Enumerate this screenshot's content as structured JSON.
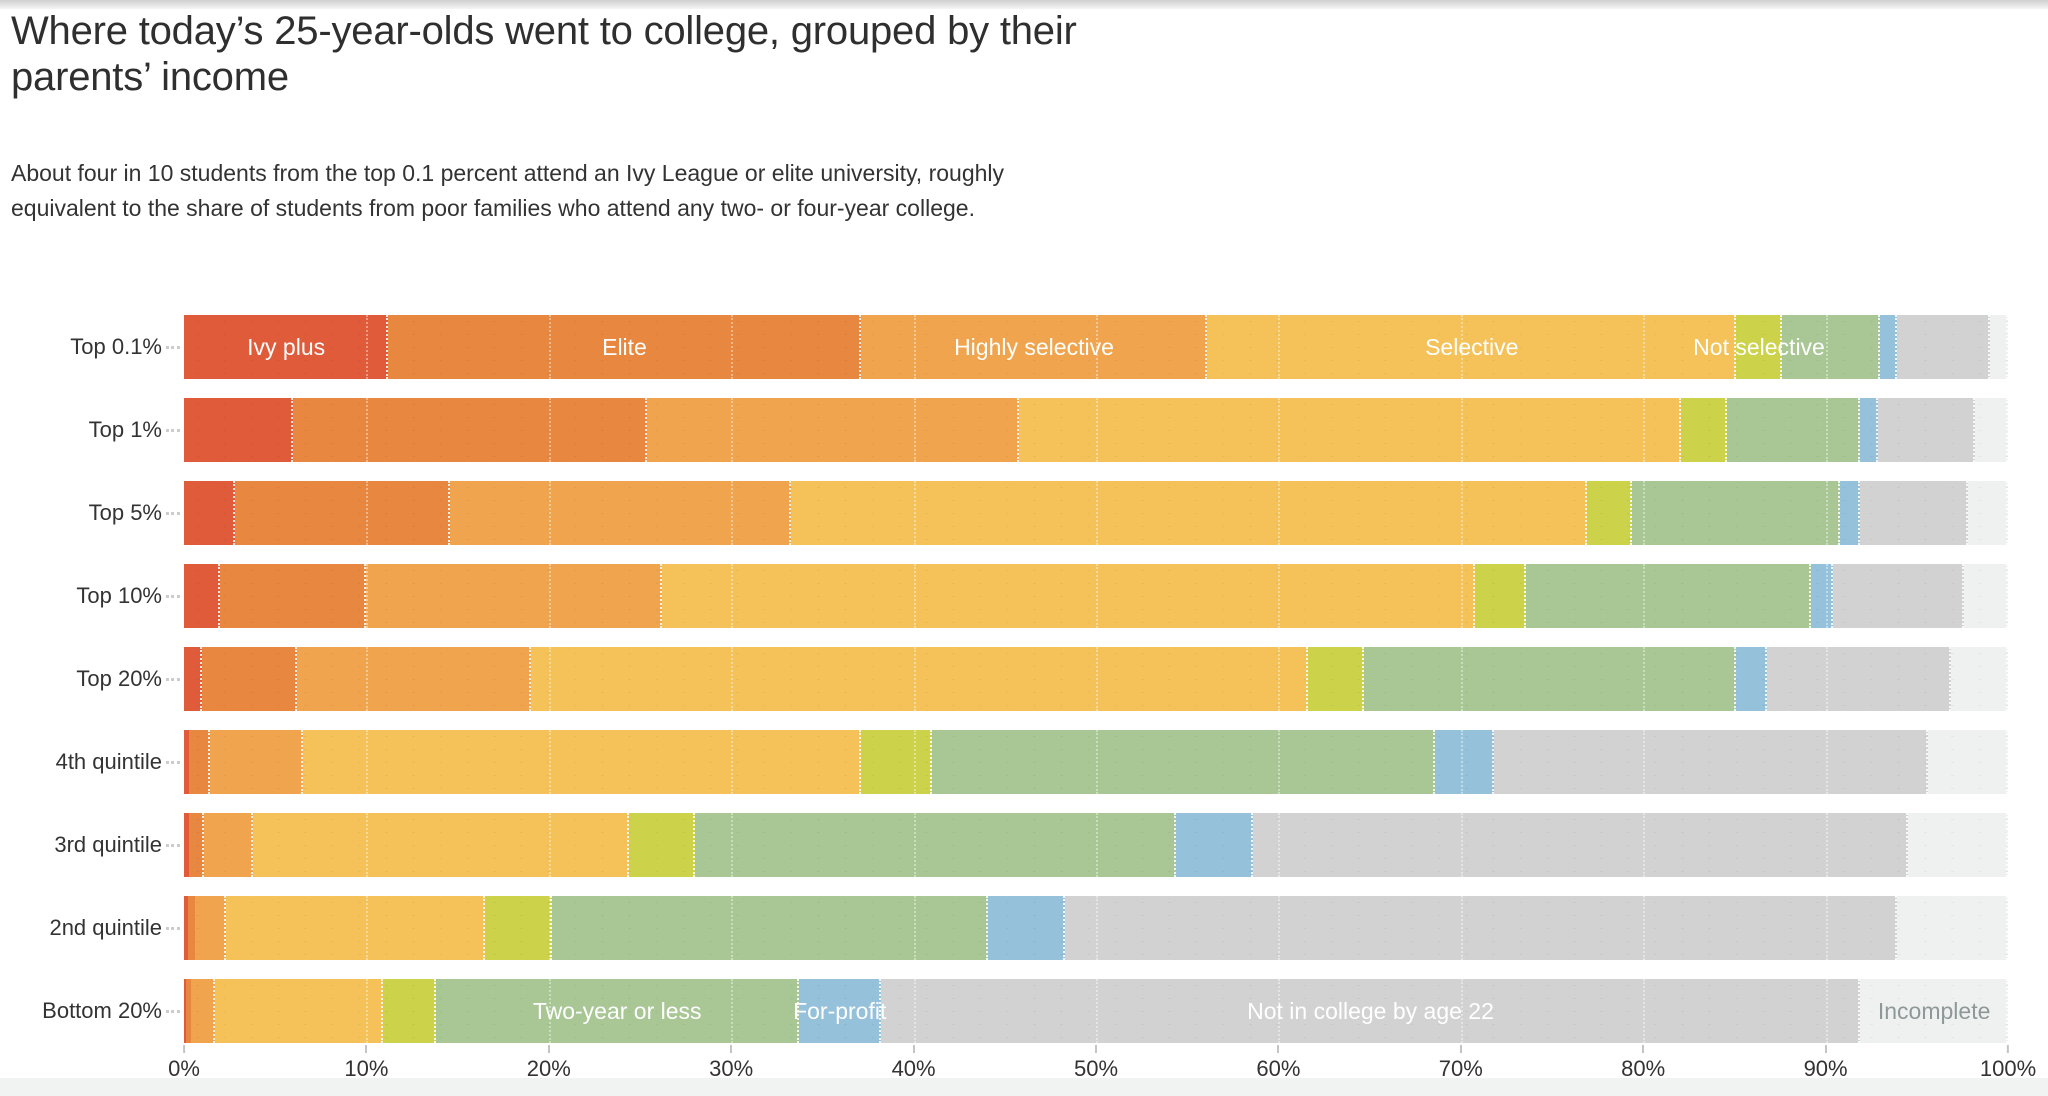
{
  "page": {
    "title": "Where today’s 25-year-olds went to college, grouped by their parents’ income",
    "subtitle": "About four in 10 students from the top 0.1 percent attend an Ivy League or elite university, roughly equivalent to the share of students from poor families who attend any two- or four-year college."
  },
  "chart_data": {
    "type": "bar",
    "variant": "stacked-horizontal",
    "unit": "percent",
    "grid": "white dotted verticals every 10%",
    "legend_position": "labels inline on first and last bars",
    "categories": [
      "Top 0.1%",
      "Top 1%",
      "Top 5%",
      "Top 10%",
      "Top 20%",
      "4th quintile",
      "3rd quintile",
      "2nd quintile",
      "Bottom 20%"
    ],
    "series": [
      {
        "name": "Ivy plus",
        "color": "#df5b3a",
        "values": [
          11.2,
          6.0,
          2.8,
          2.0,
          1.0,
          0.3,
          0.3,
          0.2,
          0.1
        ]
      },
      {
        "name": "Elite",
        "color": "#e8873f",
        "values": [
          25.9,
          19.4,
          11.8,
          8.0,
          5.2,
          1.1,
          0.8,
          0.4,
          0.3
        ]
      },
      {
        "name": "Highly selective",
        "color": "#f0a44d",
        "values": [
          19.0,
          20.4,
          18.7,
          16.2,
          12.8,
          5.1,
          2.7,
          1.7,
          1.3
        ]
      },
      {
        "name": "Selective",
        "color": "#f4c259",
        "values": [
          29.0,
          36.3,
          43.6,
          44.6,
          42.6,
          30.6,
          20.6,
          14.2,
          9.2
        ]
      },
      {
        "name": "Not selective",
        "color": "#ccd24a",
        "values": [
          2.5,
          2.5,
          2.5,
          2.8,
          3.1,
          3.9,
          3.6,
          3.7,
          2.9
        ]
      },
      {
        "name": "Two-year or less",
        "color": "#a8c795",
        "values": [
          5.4,
          7.3,
          11.4,
          15.6,
          20.4,
          27.6,
          26.4,
          23.9,
          19.9
        ]
      },
      {
        "name": "For-profit",
        "color": "#95c1db",
        "values": [
          0.9,
          1.0,
          1.1,
          1.2,
          1.7,
          3.2,
          4.2,
          4.2,
          4.5
        ]
      },
      {
        "name": "Not in college by age 22",
        "color": "#d2d2d2",
        "values": [
          5.1,
          5.3,
          5.9,
          7.2,
          10.1,
          23.8,
          35.9,
          45.6,
          53.7
        ]
      },
      {
        "name": "Incomplete",
        "color": "#eef1f0",
        "values": [
          1.0,
          1.8,
          2.2,
          2.4,
          3.1,
          4.4,
          5.5,
          6.1,
          8.1
        ]
      }
    ],
    "segment_labels": [
      {
        "row": 0,
        "series": "Ivy plus",
        "text": "Ivy plus",
        "color": "#ffffff"
      },
      {
        "row": 0,
        "series": "Elite",
        "text": "Elite",
        "color": "#ffffff"
      },
      {
        "row": 0,
        "series": "Highly selective",
        "text": "Highly selective",
        "color": "#ffffff"
      },
      {
        "row": 0,
        "series": "Selective",
        "text": "Selective",
        "color": "#ffffff"
      },
      {
        "row": 0,
        "series": "Not selective",
        "text": "Not selective",
        "color": "#ffffff"
      },
      {
        "row": 8,
        "series": "Two-year or less",
        "text": "Two-year or less",
        "color": "#ffffff"
      },
      {
        "row": 8,
        "series": "For-profit",
        "text": "For-profit",
        "color": "#ffffff"
      },
      {
        "row": 8,
        "series": "Not in college by age 22",
        "text": "Not in college by age 22",
        "color": "#ffffff"
      },
      {
        "row": 8,
        "series": "Incomplete",
        "text": "Incomplete",
        "color": "#8f9898"
      }
    ],
    "x_axis": {
      "min": 0,
      "max": 100,
      "tick_labels": [
        "0%",
        "10%",
        "20%",
        "30%",
        "40%",
        "50%",
        "60%",
        "70%",
        "80%",
        "90%",
        "100%"
      ]
    }
  }
}
